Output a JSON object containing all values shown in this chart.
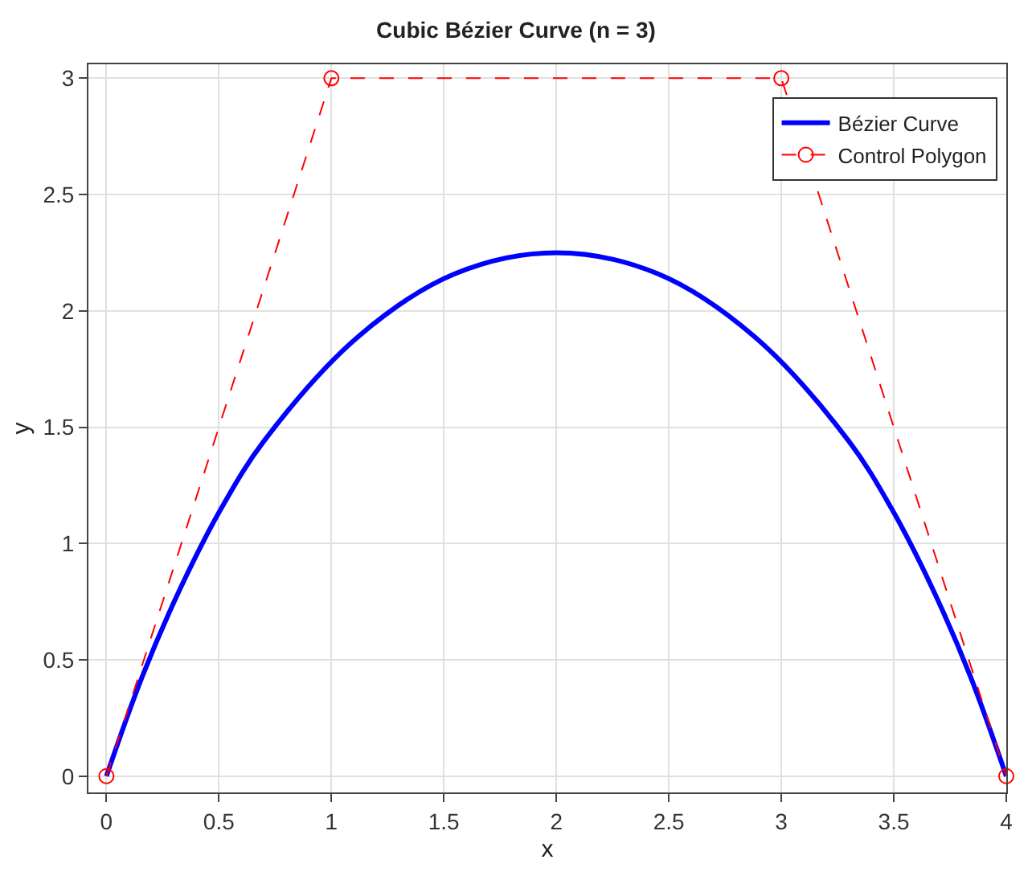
{
  "chart_data": {
    "type": "line",
    "title": "Cubic Bézier Curve (n = 3)",
    "xlabel": "x",
    "ylabel": "y",
    "xlim": [
      -0.08,
      4
    ],
    "ylim": [
      -0.07,
      3.06
    ],
    "xticks": [
      0,
      0.5,
      1,
      1.5,
      2,
      2.5,
      3,
      3.5,
      4
    ],
    "yticks": [
      0,
      0.5,
      1,
      1.5,
      2,
      2.5,
      3
    ],
    "grid": true,
    "legend": "top right",
    "series": [
      {
        "name": "Bézier Curve",
        "color": "#0000ff",
        "line_style": "solid",
        "marker": "none",
        "x": [
          0,
          0.16,
          0.33,
          0.51,
          0.7,
          1.12,
          1.55,
          2,
          2.45,
          2.88,
          3.3,
          3.49,
          3.67,
          3.84,
          4
        ],
        "values": [
          0,
          0.43,
          0.81,
          1.15,
          1.44,
          1.89,
          2.16,
          2.25,
          2.16,
          1.89,
          1.44,
          1.15,
          0.81,
          0.43,
          0
        ]
      },
      {
        "name": "Control Polygon",
        "color": "#ff0000",
        "line_style": "dashed",
        "marker": "circle",
        "x": [
          0,
          1,
          3,
          4
        ],
        "values": [
          0,
          3,
          3,
          0
        ]
      }
    ]
  }
}
